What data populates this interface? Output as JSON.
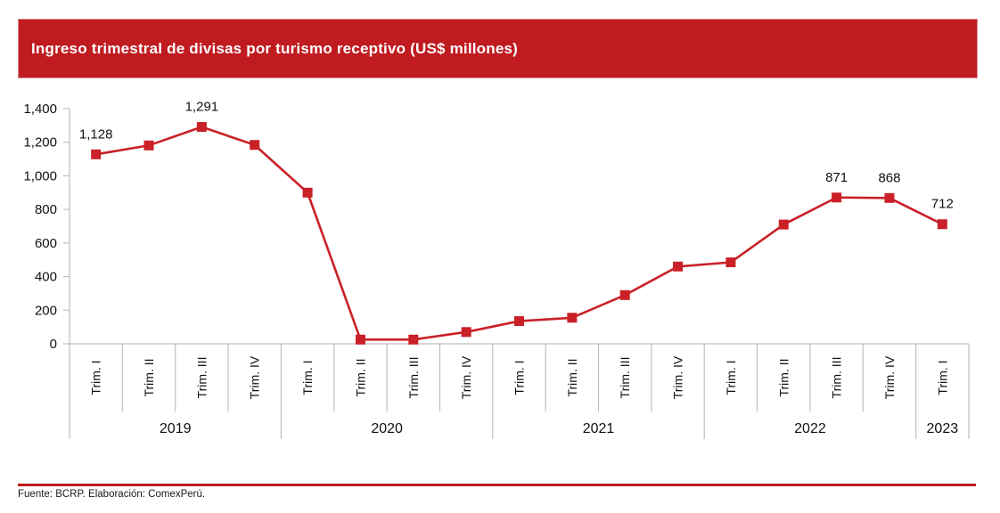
{
  "header": {
    "title": "Ingreso trimestral de divisas por turismo receptivo (US$ millones)",
    "bar_color": "#c01b20"
  },
  "footer": {
    "source": "Fuente: BCRP. Elaboración: ComexPerú.",
    "line_color": "#c01b20"
  },
  "chart_data": {
    "type": "line",
    "title": "Ingreso trimestral de divisas por turismo receptivo (US$ millones)",
    "unit": "US$ millones",
    "line_color": "#ca2027",
    "marker": "square",
    "axis_color": "#bfbfbf",
    "text_color": "#111111",
    "grid": false,
    "legend": "none",
    "y_axis": {
      "max": 1400,
      "min": 0,
      "ticks": [
        {
          "value": 0,
          "label": "0"
        },
        {
          "value": 200,
          "label": "200"
        },
        {
          "value": 400,
          "label": "400"
        },
        {
          "value": 600,
          "label": "600"
        },
        {
          "value": 800,
          "label": "800"
        },
        {
          "value": 1000,
          "label": "1,000"
        },
        {
          "value": 1200,
          "label": "1,200"
        },
        {
          "value": 1400,
          "label": "1,400"
        }
      ]
    },
    "year_groups": [
      {
        "label": "2019",
        "quarters": [
          "Trim. I",
          "Trim. II",
          "Trim. III",
          "Trim. IV"
        ]
      },
      {
        "label": "2020",
        "quarters": [
          "Trim. I",
          "Trim. II",
          "Trim. III",
          "Trim. IV"
        ]
      },
      {
        "label": "2021",
        "quarters": [
          "Trim. I",
          "Trim. II",
          "Trim. III",
          "Trim. IV"
        ]
      },
      {
        "label": "2022",
        "quarters": [
          "Trim. I",
          "Trim. II",
          "Trim. III",
          "Trim. IV"
        ]
      },
      {
        "label": "2023",
        "quarters": [
          "Trim. I"
        ]
      }
    ],
    "values": [
      1128,
      1181,
      1291,
      1184,
      900,
      25,
      25,
      70,
      135,
      155,
      290,
      460,
      485,
      710,
      871,
      868,
      712
    ],
    "annotations": [
      {
        "index": 0,
        "label": "1,128"
      },
      {
        "index": 2,
        "label": "1,291"
      },
      {
        "index": 14,
        "label": "871"
      },
      {
        "index": 15,
        "label": "868"
      },
      {
        "index": 16,
        "label": "712"
      }
    ]
  }
}
